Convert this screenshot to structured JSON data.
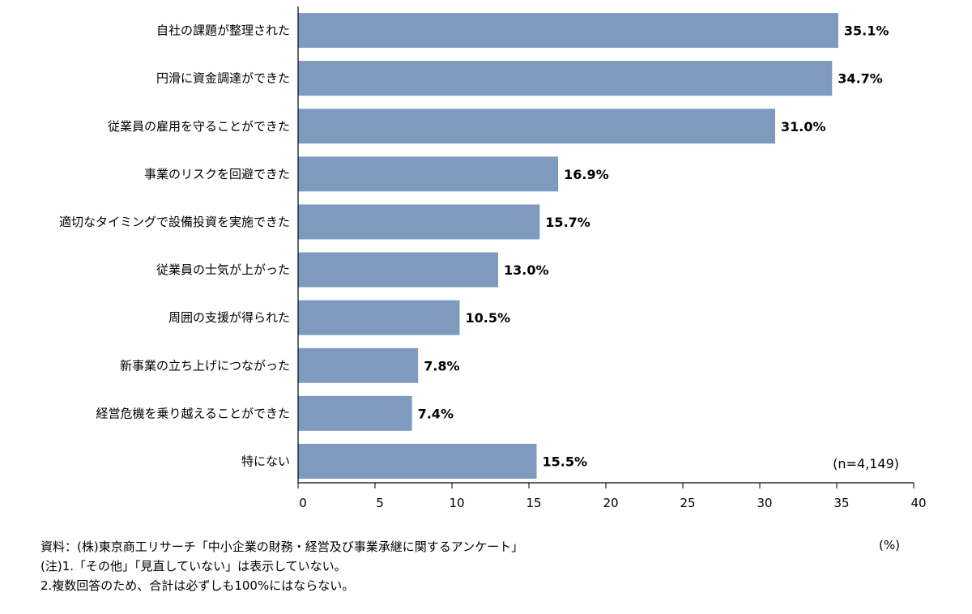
{
  "chart_data": {
    "type": "bar",
    "orientation": "horizontal",
    "categories": [
      "自社の課題が整理された",
      "円滑に資金調達ができた",
      "従業員の雇用を守ることができた",
      "事業のリスクを回避できた",
      "適切なタイミングで設備投資を実施できた",
      "従業員の士気が上がった",
      "周囲の支援が得られた",
      "新事業の立ち上げにつながった",
      "経営危機を乗り越えることができた",
      "特にない"
    ],
    "values": [
      35.1,
      34.7,
      31.0,
      16.9,
      15.7,
      13.0,
      10.5,
      7.8,
      7.4,
      15.5
    ],
    "value_labels": [
      "35.1%",
      "34.7%",
      "31.0%",
      "16.9%",
      "15.7%",
      "13.0%",
      "10.5%",
      "7.8%",
      "7.4%",
      "15.5%"
    ],
    "xlim": [
      0,
      40
    ],
    "xticks": [
      0,
      5,
      10,
      15,
      20,
      25,
      30,
      35,
      40
    ],
    "bar_color": "#7e9abf",
    "grid": false,
    "legend": "none",
    "sample_note": "(n=4,149)",
    "unit_label": "(%)"
  },
  "notes": {
    "source": "資料：(株)東京商工リサーチ「中小企業の財務・経営及び事業承継に関するアンケート」",
    "note1": "(注)1.「その他」「見直していない」は表示していない。",
    "note2": "2.複数回答のため、合計は必ずしも100%にはならない。"
  }
}
